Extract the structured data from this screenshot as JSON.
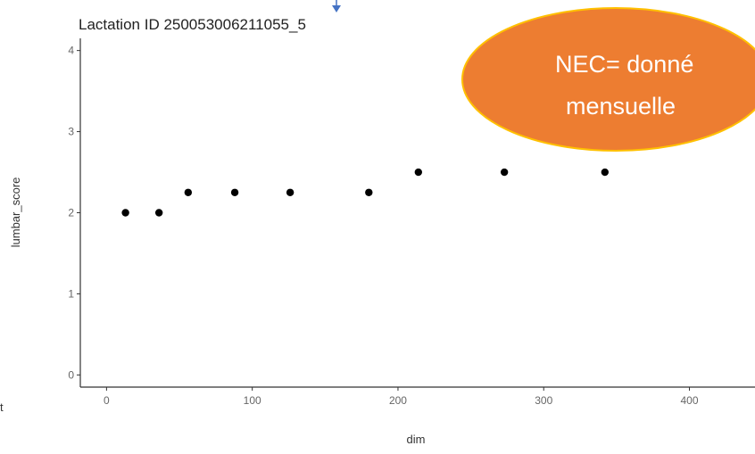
{
  "chart_data": {
    "type": "scatter",
    "title": "Lactation ID 250053006211055_5",
    "xlabel": "dim",
    "ylabel": "lumbar_score",
    "xlim": [
      -18,
      445
    ],
    "ylim": [
      -0.15,
      4.15
    ],
    "xticks": [
      0,
      100,
      200,
      300,
      400
    ],
    "yticks": [
      0,
      1,
      2,
      3,
      4
    ],
    "grid": false,
    "points": [
      {
        "x": 13,
        "y": 2
      },
      {
        "x": 36,
        "y": 2
      },
      {
        "x": 56,
        "y": 2.25
      },
      {
        "x": 88,
        "y": 2.25
      },
      {
        "x": 126,
        "y": 2.25
      },
      {
        "x": 180,
        "y": 2.25
      },
      {
        "x": 214,
        "y": 2.5
      },
      {
        "x": 273,
        "y": 2.5
      },
      {
        "x": 342,
        "y": 2.5
      }
    ],
    "point_color": "#000000"
  },
  "callout": {
    "lines": [
      "NEC= donné",
      "mensuelle"
    ],
    "fill": "#ED7D31",
    "border": "#FFC000"
  },
  "stray_text": "t",
  "arrow_color": "#4472C4"
}
